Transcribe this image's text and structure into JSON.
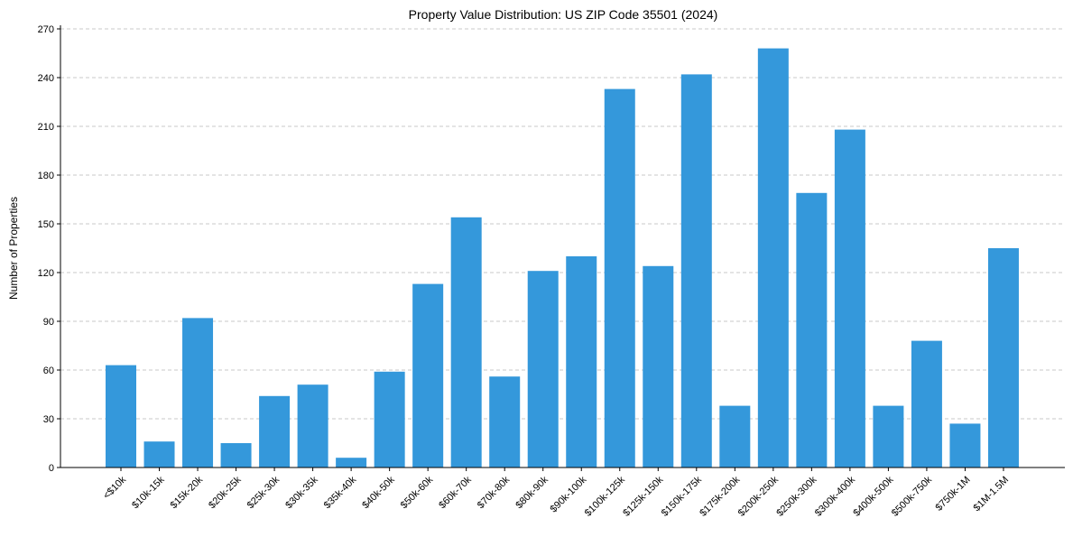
{
  "chart_data": {
    "type": "bar",
    "title": "Property Value Distribution: US ZIP Code 35501 (2024)",
    "xlabel": "",
    "ylabel": "Number of Properties",
    "ylim": [
      0,
      270
    ],
    "yticks": [
      0,
      30,
      60,
      90,
      120,
      150,
      180,
      210,
      240,
      270
    ],
    "grid": "y-dashed",
    "bar_color": "#3498db",
    "categories": [
      "<$10k",
      "$10k-15k",
      "$15k-20k",
      "$20k-25k",
      "$25k-30k",
      "$30k-35k",
      "$35k-40k",
      "$40k-50k",
      "$50k-60k",
      "$60k-70k",
      "$70k-80k",
      "$80k-90k",
      "$90k-100k",
      "$100k-125k",
      "$125k-150k",
      "$150k-175k",
      "$175k-200k",
      "$200k-250k",
      "$250k-300k",
      "$300k-400k",
      "$400k-500k",
      "$500k-750k",
      "$750k-1M",
      "$1M-1.5M"
    ],
    "values": [
      63,
      16,
      92,
      15,
      44,
      51,
      6,
      59,
      113,
      154,
      56,
      121,
      130,
      233,
      124,
      242,
      38,
      258,
      169,
      208,
      38,
      78,
      27,
      135
    ]
  }
}
